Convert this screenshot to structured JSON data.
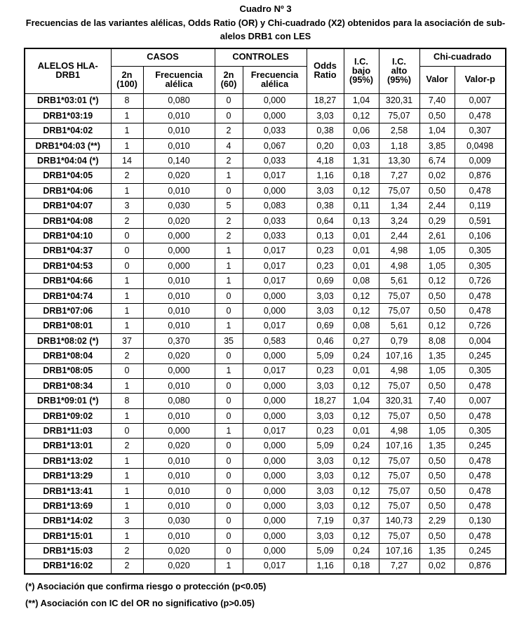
{
  "title": "Cuadro Nº 3",
  "subtitle_line1": "Frecuencias de las variantes alélicas, Odds Ratio (OR) y Chi-cuadrado (X2) obtenidos para la asociación de sub-",
  "subtitle_line2": "alelos DRB1 con LES",
  "table": {
    "header": {
      "col_allele": "ALELOS HLA-\nDRB1",
      "group_casos": "CASOS",
      "group_controles": "CONTROLES",
      "col_odds": "Odds\nRatio",
      "col_ic_bajo": "I.C.\nbajo\n(95%)",
      "col_ic_alto": "I.C.\nalto\n(95%)",
      "group_chi": "Chi-cuadrado",
      "sub_2n_casos": "2n\n(100)",
      "sub_frec_casos": "Frecuencia\nalélica",
      "sub_2n_controles": "2n\n(60)",
      "sub_frec_controles": "Frecuencia\nalélica",
      "sub_valor": "Valor",
      "sub_valor_p": "Valor-p"
    },
    "rows": [
      [
        "DRB1*03:01 (*)",
        "8",
        "0,080",
        "0",
        "0,000",
        "18,27",
        "1,04",
        "320,31",
        "7,40",
        "0,007"
      ],
      [
        "DRB1*03:19",
        "1",
        "0,010",
        "0",
        "0,000",
        "3,03",
        "0,12",
        "75,07",
        "0,50",
        "0,478"
      ],
      [
        "DRB1*04:02",
        "1",
        "0,010",
        "2",
        "0,033",
        "0,38",
        "0,06",
        "2,58",
        "1,04",
        "0,307"
      ],
      [
        "DRB1*04:03 (**)",
        "1",
        "0,010",
        "4",
        "0,067",
        "0,20",
        "0,03",
        "1,18",
        "3,85",
        "0,0498"
      ],
      [
        "DRB1*04:04 (*)",
        "14",
        "0,140",
        "2",
        "0,033",
        "4,18",
        "1,31",
        "13,30",
        "6,74",
        "0,009"
      ],
      [
        "DRB1*04:05",
        "2",
        "0,020",
        "1",
        "0,017",
        "1,16",
        "0,18",
        "7,27",
        "0,02",
        "0,876"
      ],
      [
        "DRB1*04:06",
        "1",
        "0,010",
        "0",
        "0,000",
        "3,03",
        "0,12",
        "75,07",
        "0,50",
        "0,478"
      ],
      [
        "DRB1*04:07",
        "3",
        "0,030",
        "5",
        "0,083",
        "0,38",
        "0,11",
        "1,34",
        "2,44",
        "0,119"
      ],
      [
        "DRB1*04:08",
        "2",
        "0,020",
        "2",
        "0,033",
        "0,64",
        "0,13",
        "3,24",
        "0,29",
        "0,591"
      ],
      [
        "DRB1*04:10",
        "0",
        "0,000",
        "2",
        "0,033",
        "0,13",
        "0,01",
        "2,44",
        "2,61",
        "0,106"
      ],
      [
        "DRB1*04:37",
        "0",
        "0,000",
        "1",
        "0,017",
        "0,23",
        "0,01",
        "4,98",
        "1,05",
        "0,305"
      ],
      [
        "DRB1*04:53",
        "0",
        "0,000",
        "1",
        "0,017",
        "0,23",
        "0,01",
        "4,98",
        "1,05",
        "0,305"
      ],
      [
        "DRB1*04:66",
        "1",
        "0,010",
        "1",
        "0,017",
        "0,69",
        "0,08",
        "5,61",
        "0,12",
        "0,726"
      ],
      [
        "DRB1*04:74",
        "1",
        "0,010",
        "0",
        "0,000",
        "3,03",
        "0,12",
        "75,07",
        "0,50",
        "0,478"
      ],
      [
        "DRB1*07:06",
        "1",
        "0,010",
        "0",
        "0,000",
        "3,03",
        "0,12",
        "75,07",
        "0,50",
        "0,478"
      ],
      [
        "DRB1*08:01",
        "1",
        "0,010",
        "1",
        "0,017",
        "0,69",
        "0,08",
        "5,61",
        "0,12",
        "0,726"
      ],
      [
        "DRB1*08:02 (*)",
        "37",
        "0,370",
        "35",
        "0,583",
        "0,46",
        "0,27",
        "0,79",
        "8,08",
        "0,004"
      ],
      [
        "DRB1*08:04",
        "2",
        "0,020",
        "0",
        "0,000",
        "5,09",
        "0,24",
        "107,16",
        "1,35",
        "0,245"
      ],
      [
        "DRB1*08:05",
        "0",
        "0,000",
        "1",
        "0,017",
        "0,23",
        "0,01",
        "4,98",
        "1,05",
        "0,305"
      ],
      [
        "DRB1*08:34",
        "1",
        "0,010",
        "0",
        "0,000",
        "3,03",
        "0,12",
        "75,07",
        "0,50",
        "0,478"
      ],
      [
        "DRB1*09:01 (*)",
        "8",
        "0,080",
        "0",
        "0,000",
        "18,27",
        "1,04",
        "320,31",
        "7,40",
        "0,007"
      ],
      [
        "DRB1*09:02",
        "1",
        "0,010",
        "0",
        "0,000",
        "3,03",
        "0,12",
        "75,07",
        "0,50",
        "0,478"
      ],
      [
        "DRB1*11:03",
        "0",
        "0,000",
        "1",
        "0,017",
        "0,23",
        "0,01",
        "4,98",
        "1,05",
        "0,305"
      ],
      [
        "DRB1*13:01",
        "2",
        "0,020",
        "0",
        "0,000",
        "5,09",
        "0,24",
        "107,16",
        "1,35",
        "0,245"
      ],
      [
        "DRB1*13:02",
        "1",
        "0,010",
        "0",
        "0,000",
        "3,03",
        "0,12",
        "75,07",
        "0,50",
        "0,478"
      ],
      [
        "DRB1*13:29",
        "1",
        "0,010",
        "0",
        "0,000",
        "3,03",
        "0,12",
        "75,07",
        "0,50",
        "0,478"
      ],
      [
        "DRB1*13:41",
        "1",
        "0,010",
        "0",
        "0,000",
        "3,03",
        "0,12",
        "75,07",
        "0,50",
        "0,478"
      ],
      [
        "DRB1*13:69",
        "1",
        "0,010",
        "0",
        "0,000",
        "3,03",
        "0,12",
        "75,07",
        "0,50",
        "0,478"
      ],
      [
        "DRB1*14:02",
        "3",
        "0,030",
        "0",
        "0,000",
        "7,19",
        "0,37",
        "140,73",
        "2,29",
        "0,130"
      ],
      [
        "DRB1*15:01",
        "1",
        "0,010",
        "0",
        "0,000",
        "3,03",
        "0,12",
        "75,07",
        "0,50",
        "0,478"
      ],
      [
        "DRB1*15:03",
        "2",
        "0,020",
        "0",
        "0,000",
        "5,09",
        "0,24",
        "107,16",
        "1,35",
        "0,245"
      ],
      [
        "DRB1*16:02",
        "2",
        "0,020",
        "1",
        "0,017",
        "1,16",
        "0,18",
        "7,27",
        "0,02",
        "0,876"
      ]
    ]
  },
  "footnotes": [
    "(*) Asociación que confirma riesgo o protección (p<0.05)",
    "(**) Asociación con IC del OR no significativo (p>0.05)"
  ]
}
